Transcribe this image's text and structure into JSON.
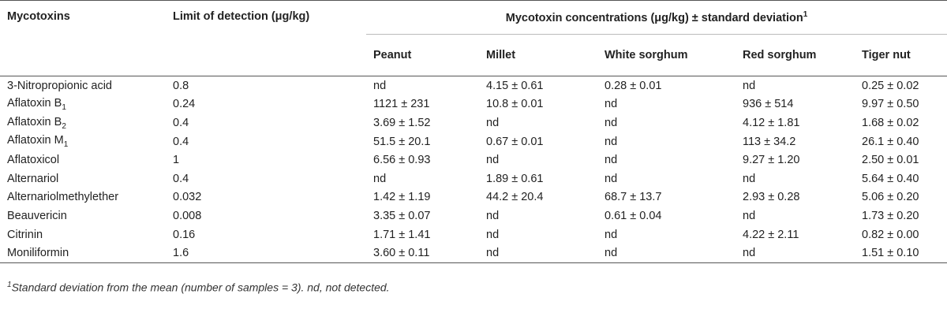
{
  "header": {
    "mycotoxins": "Mycotoxins",
    "limit": "Limit of detection (μg/kg)",
    "group": "Mycotoxin concentrations (μg/kg) ± standard deviation",
    "group_sup": "1",
    "cols": [
      "Peanut",
      "Millet",
      "White sorghum",
      "Red sorghum",
      "Tiger nut"
    ]
  },
  "rows": [
    {
      "name": "3-Nitropropionic acid",
      "sub": "",
      "lod": "0.8",
      "vals": [
        "nd",
        "4.15 ± 0.61",
        "0.28 ± 0.01",
        "nd",
        "0.25 ± 0.02"
      ]
    },
    {
      "name": "Aflatoxin B",
      "sub": "1",
      "lod": "0.24",
      "vals": [
        "1121 ± 231",
        "10.8 ± 0.01",
        "nd",
        "936 ± 514",
        "9.97 ± 0.50"
      ]
    },
    {
      "name": "Aflatoxin B",
      "sub": "2",
      "lod": "0.4",
      "vals": [
        "3.69 ± 1.52",
        "nd",
        "nd",
        "4.12 ± 1.81",
        "1.68 ± 0.02"
      ]
    },
    {
      "name": "Aflatoxin M",
      "sub": "1",
      "lod": "0.4",
      "vals": [
        "51.5 ± 20.1",
        "0.67 ± 0.01",
        "nd",
        "113 ± 34.2",
        "26.1 ± 0.40"
      ]
    },
    {
      "name": "Aflatoxicol",
      "sub": "",
      "lod": "1",
      "vals": [
        "6.56 ± 0.93",
        "nd",
        "nd",
        "9.27 ± 1.20",
        "2.50 ± 0.01"
      ]
    },
    {
      "name": "Alternariol",
      "sub": "",
      "lod": "0.4",
      "vals": [
        "nd",
        "1.89 ± 0.61",
        "nd",
        "nd",
        "5.64 ± 0.40"
      ]
    },
    {
      "name": "Alternariolmethylether",
      "sub": "",
      "lod": "0.032",
      "vals": [
        "1.42 ± 1.19",
        "44.2 ± 20.4",
        "68.7 ± 13.7",
        "2.93 ± 0.28",
        "5.06 ± 0.20"
      ]
    },
    {
      "name": "Beauvericin",
      "sub": "",
      "lod": "0.008",
      "vals": [
        "3.35 ± 0.07",
        "nd",
        "0.61 ± 0.04",
        "nd",
        "1.73 ± 0.20"
      ]
    },
    {
      "name": "Citrinin",
      "sub": "",
      "lod": "0.16",
      "vals": [
        "1.71 ± 1.41",
        "nd",
        "nd",
        "4.22 ± 2.11",
        "0.82 ± 0.00"
      ]
    },
    {
      "name": "Moniliformin",
      "sub": "",
      "lod": "1.6",
      "vals": [
        "3.60 ± 0.11",
        "nd",
        "nd",
        "nd",
        "1.51 ± 0.10"
      ]
    }
  ],
  "footnote": {
    "sup": "1",
    "text": "Standard deviation from the mean (number of samples = 3). nd, not detected."
  }
}
